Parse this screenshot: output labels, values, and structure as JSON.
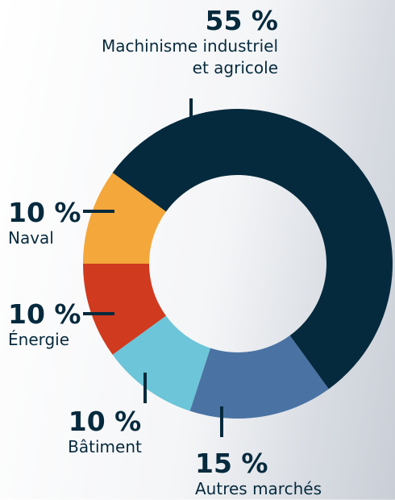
{
  "chart_data": {
    "type": "donut",
    "categories": [
      "Machinisme industriel et agricole",
      "Autres marchés",
      "Bâtiment",
      "Énergie",
      "Naval"
    ],
    "values": [
      55,
      15,
      10,
      10,
      10
    ],
    "value_labels": [
      "55 %",
      "15 %",
      "10 %",
      "10 %",
      "10 %"
    ],
    "colors": [
      "#062a3d",
      "#4a73a3",
      "#6cc5d8",
      "#d03a1f",
      "#f4a73b"
    ]
  }
}
